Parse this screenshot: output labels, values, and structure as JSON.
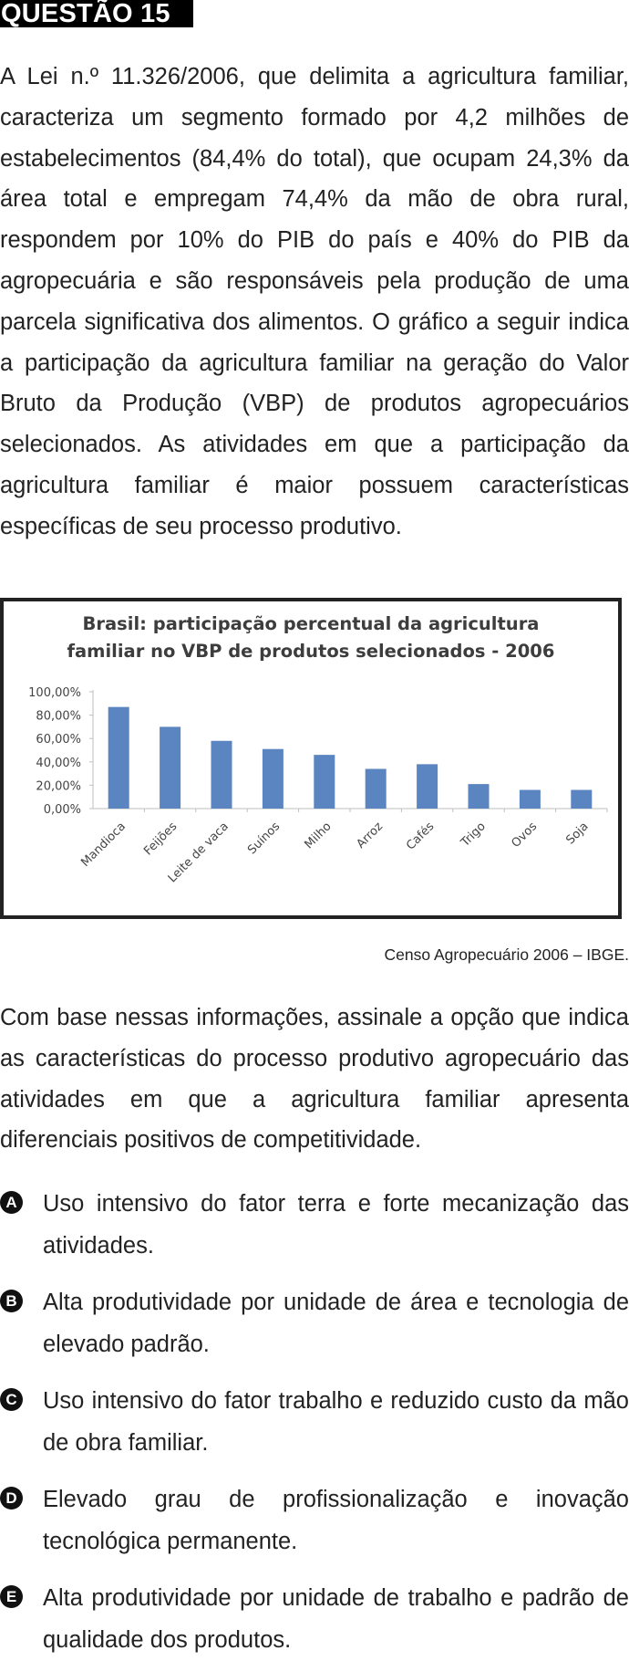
{
  "header": {
    "title": "QUESTÃO 15"
  },
  "intro": "A Lei n.º 11.326/2006, que delimita a agricultura familiar, caracteriza um segmento formado por 4,2 milhões de estabelecimentos (84,4% do total), que ocupam 24,3% da área total e empregam 74,4% da mão de obra rural, respondem por 10% do PIB do país e 40% do PIB da agropecuária e são responsáveis pela produção de uma parcela significativa dos alimentos. O gráfico a seguir indica a participação da agricultura familiar na geração do Valor Bruto da Produção (VBP) de produtos agropecuários selecionados. As atividades em que a participação da agricultura familiar é maior possuem características específicas de seu processo produtivo.",
  "chart_data": {
    "type": "bar",
    "title_line1": "Brasil: participação percentual da agricultura",
    "title_line2": "familiar no VBP de produtos selecionados - 2006",
    "categories": [
      "Mandioca",
      "Feijões",
      "Leite de vaca",
      "Suínos",
      "Milho",
      "Arroz",
      "Cafés",
      "Trigo",
      "Ovos",
      "Soja"
    ],
    "values": [
      87.0,
      70.0,
      58.0,
      51.0,
      46.0,
      34.0,
      38.0,
      21.0,
      16.0,
      16.0
    ],
    "y_ticks": [
      "100,00%",
      "80,00%",
      "60,00%",
      "40,00%",
      "20,00%",
      "0,00%"
    ],
    "ylim": [
      0,
      100
    ],
    "bar_color": "#5b85c1",
    "grid": false
  },
  "source": "Censo Agropecuário 2006 – IBGE.",
  "question": "Com base nessas informações, assinale a opção que indica as características do processo produtivo agropecuário das atividades em que a agricultura familiar apresenta diferenciais positivos de competitividade.",
  "options": [
    {
      "letter": "A",
      "text": "Uso intensivo do fator terra e forte mecanização das atividades."
    },
    {
      "letter": "B",
      "text": "Alta produtividade por unidade de área e tecnologia de elevado padrão."
    },
    {
      "letter": "C",
      "text": "Uso intensivo do fator trabalho e reduzido custo da mão de obra familiar."
    },
    {
      "letter": "D",
      "text": "Elevado grau de profissionalização e inovação tecnológica permanente."
    },
    {
      "letter": "E",
      "text": "Alta produtividade por unidade de trabalho e padrão de qualidade dos produtos."
    }
  ]
}
